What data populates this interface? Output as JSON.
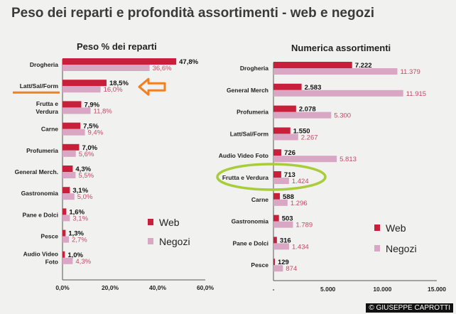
{
  "page": {
    "title": "Peso dei reparti e profondità assortimenti - web e negozi",
    "copyright": "© GIUSEPPE CAPROTTI"
  },
  "colors": {
    "web": "#c8203a",
    "negozi": "#d9a7c4",
    "web_text": "#111111",
    "negozi_text": "#c04a66",
    "axis": "#555555",
    "highlight_orange": "#f08020",
    "highlight_green": "#a8cc3a"
  },
  "chart_data": [
    {
      "type": "bar",
      "orientation": "horizontal",
      "title": "Peso % dei reparti",
      "categories": [
        "Drogheria",
        "Latt/Sal/Form",
        "Frutta e Verdura",
        "Carne",
        "Profumeria",
        "General Merch.",
        "Gastronomia",
        "Pane e Dolci",
        "Pesce",
        "Audio Video Foto"
      ],
      "series": [
        {
          "name": "Web",
          "values": [
            47.8,
            18.5,
            7.9,
            7.5,
            7.0,
            4.3,
            3.1,
            1.6,
            1.3,
            1.0
          ],
          "labels": [
            "47,8%",
            "18,5%",
            "7,9%",
            "7,5%",
            "7,0%",
            "4,3%",
            "3,1%",
            "1,6%",
            "1,3%",
            "1,0%"
          ]
        },
        {
          "name": "Negozi",
          "values": [
            36.6,
            16.0,
            11.8,
            9.4,
            5.6,
            5.5,
            5.0,
            3.1,
            2.7,
            4.3
          ],
          "labels": [
            "36,6%",
            "16,0%",
            "11,8%",
            "9,4%",
            "5,6%",
            "5,5%",
            "5,0%",
            "3,1%",
            "2,7%",
            "4,3%"
          ]
        }
      ],
      "xlim": [
        0,
        60
      ],
      "xticks": [
        "0,0%",
        "20,0%",
        "40,0%",
        "60,0%"
      ],
      "grid": false,
      "legend": "bottom-right",
      "highlight": "Latt/Sal/Form"
    },
    {
      "type": "bar",
      "orientation": "horizontal",
      "title": "Numerica assortimenti",
      "categories": [
        "Drogheria",
        "General Merch",
        "Profumeria",
        "Latt/Sal/Form",
        "Audio Video Foto",
        "Frutta e Verdura",
        "Carne",
        "Gastronomia",
        "Pane e Dolci",
        "Pesce"
      ],
      "series": [
        {
          "name": "Web",
          "values": [
            7222,
            2583,
            2078,
            1550,
            726,
            713,
            588,
            503,
            316,
            129
          ],
          "labels": [
            "7.222",
            "2.583",
            "2.078",
            "1.550",
            "726",
            "713",
            "588",
            "503",
            "316",
            "129"
          ]
        },
        {
          "name": "Negozi",
          "values": [
            11379,
            11915,
            5300,
            2267,
            5813,
            1424,
            1296,
            1789,
            1434,
            874
          ],
          "labels": [
            "11.379",
            "11.915",
            "5.300",
            "2.267",
            "5.813",
            "1.424",
            "1.296",
            "1.789",
            "1.434",
            "874"
          ]
        }
      ],
      "xlim": [
        0,
        15000
      ],
      "xticks": [
        "-",
        "5.000",
        "10.000",
        "15.000"
      ],
      "grid": false,
      "legend": "bottom-right",
      "highlight": "Frutta e Verdura"
    }
  ]
}
